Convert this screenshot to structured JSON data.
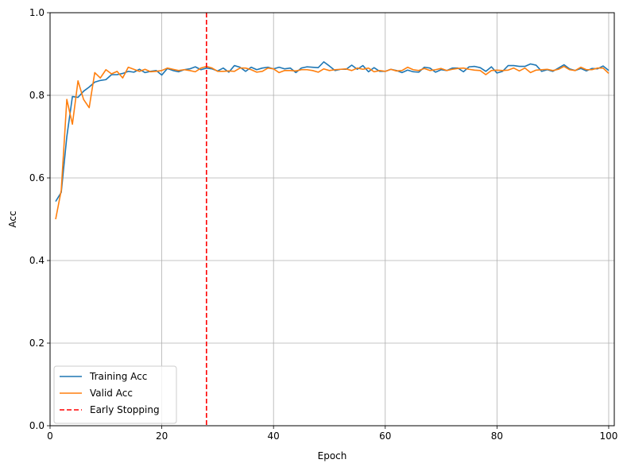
{
  "chart_data": {
    "type": "line",
    "xlabel": "Epoch",
    "ylabel": "Acc",
    "xlim": [
      0,
      101
    ],
    "ylim": [
      0,
      1.0
    ],
    "xticks": [
      0,
      20,
      40,
      60,
      80,
      100
    ],
    "yticks": [
      0.0,
      0.2,
      0.4,
      0.6,
      0.8,
      1.0
    ],
    "xtick_labels": [
      "0",
      "20",
      "40",
      "60",
      "80",
      "100"
    ],
    "ytick_labels": [
      "0.0",
      "0.2",
      "0.4",
      "0.6",
      "0.8",
      "1.0"
    ],
    "grid": true,
    "legend_position": "lower-left",
    "series": [
      {
        "name": "Training Acc",
        "color": "#1f77b4",
        "x": [
          1,
          2,
          3,
          4,
          5,
          6,
          7,
          8,
          9,
          10,
          11,
          12,
          13,
          14,
          15,
          16,
          17,
          18,
          19,
          20,
          21,
          22,
          23,
          24,
          25,
          26,
          27,
          28,
          29,
          30,
          31,
          32,
          33,
          34,
          35,
          36,
          37,
          38,
          39,
          40,
          41,
          42,
          43,
          44,
          45,
          46,
          47,
          48,
          49,
          50,
          51,
          52,
          53,
          54,
          55,
          56,
          57,
          58,
          59,
          60,
          61,
          62,
          63,
          64,
          65,
          66,
          67,
          68,
          69,
          70,
          71,
          72,
          73,
          74,
          75,
          76,
          77,
          78,
          79,
          80,
          81,
          82,
          83,
          84,
          85,
          86,
          87,
          88,
          89,
          90,
          91,
          92,
          93,
          94,
          95,
          96,
          97,
          98,
          99,
          100
        ],
        "values": [
          0.543,
          0.565,
          0.7,
          0.797,
          0.795,
          0.81,
          0.82,
          0.832,
          0.836,
          0.838,
          0.85,
          0.85,
          0.853,
          0.858,
          0.856,
          0.863,
          0.855,
          0.858,
          0.86,
          0.849,
          0.865,
          0.86,
          0.857,
          0.862,
          0.864,
          0.869,
          0.862,
          0.866,
          0.864,
          0.859,
          0.866,
          0.856,
          0.872,
          0.868,
          0.858,
          0.868,
          0.862,
          0.866,
          0.868,
          0.864,
          0.868,
          0.864,
          0.866,
          0.855,
          0.866,
          0.869,
          0.868,
          0.867,
          0.881,
          0.871,
          0.86,
          0.863,
          0.863,
          0.873,
          0.863,
          0.872,
          0.857,
          0.867,
          0.858,
          0.858,
          0.863,
          0.86,
          0.855,
          0.861,
          0.857,
          0.856,
          0.868,
          0.866,
          0.856,
          0.862,
          0.86,
          0.866,
          0.866,
          0.857,
          0.869,
          0.87,
          0.867,
          0.858,
          0.869,
          0.854,
          0.858,
          0.872,
          0.872,
          0.87,
          0.87,
          0.876,
          0.873,
          0.858,
          0.862,
          0.858,
          0.866,
          0.874,
          0.864,
          0.86,
          0.865,
          0.859,
          0.865,
          0.864,
          0.871,
          0.86
        ]
      },
      {
        "name": "Valid Acc",
        "color": "#ff7f0e",
        "x": [
          1,
          2,
          3,
          4,
          5,
          6,
          7,
          8,
          9,
          10,
          11,
          12,
          13,
          14,
          15,
          16,
          17,
          18,
          19,
          20,
          21,
          22,
          23,
          24,
          25,
          26,
          27,
          28,
          29,
          30,
          31,
          32,
          33,
          34,
          35,
          36,
          37,
          38,
          39,
          40,
          41,
          42,
          43,
          44,
          45,
          46,
          47,
          48,
          49,
          50,
          51,
          52,
          53,
          54,
          55,
          56,
          57,
          58,
          59,
          60,
          61,
          62,
          63,
          64,
          65,
          66,
          67,
          68,
          69,
          70,
          71,
          72,
          73,
          74,
          75,
          76,
          77,
          78,
          79,
          80,
          81,
          82,
          83,
          84,
          85,
          86,
          87,
          88,
          89,
          90,
          91,
          92,
          93,
          94,
          95,
          96,
          97,
          98,
          99,
          100
        ],
        "values": [
          0.5,
          0.57,
          0.79,
          0.73,
          0.835,
          0.79,
          0.77,
          0.855,
          0.842,
          0.862,
          0.852,
          0.858,
          0.842,
          0.868,
          0.863,
          0.858,
          0.863,
          0.857,
          0.858,
          0.86,
          0.866,
          0.863,
          0.86,
          0.862,
          0.86,
          0.857,
          0.866,
          0.87,
          0.866,
          0.858,
          0.858,
          0.859,
          0.858,
          0.866,
          0.866,
          0.862,
          0.856,
          0.858,
          0.866,
          0.864,
          0.855,
          0.86,
          0.86,
          0.859,
          0.862,
          0.862,
          0.86,
          0.856,
          0.864,
          0.86,
          0.862,
          0.863,
          0.864,
          0.86,
          0.866,
          0.863,
          0.866,
          0.857,
          0.86,
          0.858,
          0.863,
          0.859,
          0.86,
          0.868,
          0.862,
          0.86,
          0.865,
          0.86,
          0.862,
          0.865,
          0.86,
          0.863,
          0.865,
          0.866,
          0.863,
          0.861,
          0.86,
          0.85,
          0.86,
          0.861,
          0.86,
          0.861,
          0.866,
          0.859,
          0.866,
          0.855,
          0.861,
          0.862,
          0.863,
          0.86,
          0.863,
          0.87,
          0.862,
          0.86,
          0.868,
          0.862,
          0.862,
          0.866,
          0.866,
          0.853
        ]
      }
    ],
    "markers": [
      {
        "name": "Early Stopping",
        "type": "vline",
        "x": 28,
        "color": "#ff0000",
        "style": "dashed"
      }
    ]
  }
}
